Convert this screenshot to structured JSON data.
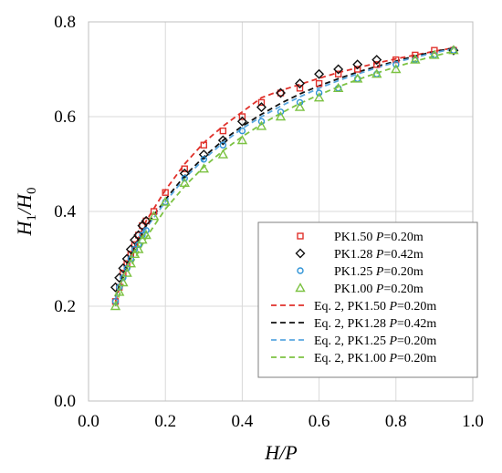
{
  "chart_data": {
    "type": "scatter",
    "xlabel": {
      "main": "H/P"
    },
    "ylabel": {
      "main": "H",
      "sub": "1",
      "slash": "/",
      "main2": "H",
      "sub2": "0"
    },
    "xlim": [
      0.0,
      1.0
    ],
    "ylim": [
      0.0,
      0.8
    ],
    "xticks": [
      "0.0",
      "0.2",
      "0.4",
      "0.6",
      "0.8",
      "1.0"
    ],
    "yticks": [
      "0.0",
      "0.2",
      "0.4",
      "0.6",
      "0.8"
    ],
    "grid": true,
    "legend_position": "bottom-right",
    "series": [
      {
        "name": "PK1.50 P=0.20m",
        "legend": {
          "pre": "PK1.50 ",
          "italic": "P",
          "post": "=0.20m"
        },
        "marker": "square",
        "color": "#e0312b",
        "points": [
          [
            0.07,
            0.21
          ],
          [
            0.08,
            0.24
          ],
          [
            0.09,
            0.27
          ],
          [
            0.1,
            0.29
          ],
          [
            0.11,
            0.31
          ],
          [
            0.12,
            0.33
          ],
          [
            0.13,
            0.35
          ],
          [
            0.14,
            0.37
          ],
          [
            0.15,
            0.38
          ],
          [
            0.17,
            0.4
          ],
          [
            0.2,
            0.44
          ],
          [
            0.25,
            0.49
          ],
          [
            0.3,
            0.54
          ],
          [
            0.35,
            0.57
          ],
          [
            0.4,
            0.6
          ],
          [
            0.45,
            0.63
          ],
          [
            0.5,
            0.65
          ],
          [
            0.55,
            0.66
          ],
          [
            0.6,
            0.67
          ],
          [
            0.65,
            0.69
          ],
          [
            0.7,
            0.7
          ],
          [
            0.75,
            0.71
          ],
          [
            0.8,
            0.72
          ],
          [
            0.85,
            0.73
          ],
          [
            0.9,
            0.74
          ],
          [
            0.95,
            0.74
          ]
        ]
      },
      {
        "name": "PK1.28 P=0.42m",
        "legend": {
          "pre": "PK1.28 ",
          "italic": "P",
          "post": "=0.42m"
        },
        "marker": "diamond",
        "color": "#111111",
        "points": [
          [
            0.07,
            0.24
          ],
          [
            0.08,
            0.26
          ],
          [
            0.09,
            0.28
          ],
          [
            0.1,
            0.3
          ],
          [
            0.11,
            0.32
          ],
          [
            0.12,
            0.34
          ],
          [
            0.13,
            0.35
          ],
          [
            0.14,
            0.37
          ],
          [
            0.15,
            0.38
          ],
          [
            0.25,
            0.48
          ],
          [
            0.3,
            0.52
          ],
          [
            0.35,
            0.55
          ],
          [
            0.4,
            0.59
          ],
          [
            0.45,
            0.62
          ],
          [
            0.5,
            0.65
          ],
          [
            0.55,
            0.67
          ],
          [
            0.6,
            0.69
          ],
          [
            0.65,
            0.7
          ],
          [
            0.7,
            0.71
          ],
          [
            0.75,
            0.72
          ],
          [
            0.95,
            0.74
          ]
        ]
      },
      {
        "name": "PK1.25 P=0.20m",
        "legend": {
          "pre": "PK1.25 ",
          "italic": "P",
          "post": "=0.20m"
        },
        "marker": "circle",
        "color": "#2f93d6",
        "points": [
          [
            0.07,
            0.21
          ],
          [
            0.08,
            0.24
          ],
          [
            0.09,
            0.26
          ],
          [
            0.1,
            0.28
          ],
          [
            0.11,
            0.3
          ],
          [
            0.12,
            0.32
          ],
          [
            0.13,
            0.33
          ],
          [
            0.14,
            0.35
          ],
          [
            0.15,
            0.36
          ],
          [
            0.2,
            0.42
          ],
          [
            0.25,
            0.47
          ],
          [
            0.3,
            0.51
          ],
          [
            0.35,
            0.54
          ],
          [
            0.4,
            0.57
          ],
          [
            0.45,
            0.59
          ],
          [
            0.5,
            0.61
          ],
          [
            0.55,
            0.63
          ],
          [
            0.6,
            0.65
          ],
          [
            0.65,
            0.66
          ],
          [
            0.7,
            0.68
          ],
          [
            0.75,
            0.69
          ],
          [
            0.8,
            0.71
          ],
          [
            0.85,
            0.72
          ],
          [
            0.9,
            0.73
          ],
          [
            0.95,
            0.74
          ]
        ]
      },
      {
        "name": "PK1.00 P=0.20m",
        "legend": {
          "pre": "PK1.00 ",
          "italic": "P",
          "post": "=0.20m"
        },
        "marker": "triangle",
        "color": "#7cc242",
        "points": [
          [
            0.07,
            0.2
          ],
          [
            0.08,
            0.23
          ],
          [
            0.09,
            0.25
          ],
          [
            0.1,
            0.27
          ],
          [
            0.11,
            0.29
          ],
          [
            0.12,
            0.31
          ],
          [
            0.13,
            0.32
          ],
          [
            0.14,
            0.34
          ],
          [
            0.15,
            0.35
          ],
          [
            0.17,
            0.39
          ],
          [
            0.2,
            0.42
          ],
          [
            0.25,
            0.46
          ],
          [
            0.3,
            0.49
          ],
          [
            0.35,
            0.52
          ],
          [
            0.4,
            0.55
          ],
          [
            0.45,
            0.58
          ],
          [
            0.5,
            0.6
          ],
          [
            0.55,
            0.62
          ],
          [
            0.6,
            0.64
          ],
          [
            0.65,
            0.66
          ],
          [
            0.7,
            0.68
          ],
          [
            0.75,
            0.69
          ],
          [
            0.8,
            0.7
          ],
          [
            0.85,
            0.72
          ],
          [
            0.9,
            0.73
          ],
          [
            0.95,
            0.74
          ]
        ]
      },
      {
        "name": "Eq. 2, PK1.50 P=0.20m",
        "legend": {
          "pre": "Eq. 2, PK1.50 ",
          "italic": "P",
          "post": "=0.20m"
        },
        "line": "dashed",
        "color": "#e0312b",
        "x": [
          0.07,
          0.1,
          0.15,
          0.2,
          0.25,
          0.3,
          0.35,
          0.4,
          0.45,
          0.5,
          0.55,
          0.6,
          0.65,
          0.7,
          0.75,
          0.8,
          0.85,
          0.9,
          0.95
        ],
        "y": [
          0.21,
          0.29,
          0.38,
          0.445,
          0.5,
          0.545,
          0.58,
          0.61,
          0.64,
          0.655,
          0.668,
          0.681,
          0.693,
          0.703,
          0.713,
          0.722,
          0.73,
          0.738,
          0.745
        ]
      },
      {
        "name": "Eq. 2, PK1.28 P=0.42m",
        "legend": {
          "pre": "Eq. 2, PK1.28 ",
          "italic": "P",
          "post": "=0.42m"
        },
        "line": "dashed",
        "color": "#111111",
        "x": [
          0.07,
          0.1,
          0.15,
          0.2,
          0.25,
          0.3,
          0.35,
          0.4,
          0.45,
          0.5,
          0.55,
          0.6,
          0.65,
          0.7,
          0.75,
          0.8,
          0.85,
          0.9,
          0.95
        ],
        "y": [
          0.22,
          0.29,
          0.37,
          0.425,
          0.475,
          0.515,
          0.55,
          0.58,
          0.605,
          0.628,
          0.648,
          0.665,
          0.68,
          0.694,
          0.706,
          0.717,
          0.728,
          0.737,
          0.745
        ]
      },
      {
        "name": "Eq. 2, PK1.25 P=0.20m",
        "legend": {
          "pre": "Eq. 2, PK1.25 ",
          "italic": "P",
          "post": "=0.20m"
        },
        "line": "dashed",
        "color": "#5aa8e0",
        "x": [
          0.07,
          0.1,
          0.15,
          0.2,
          0.25,
          0.3,
          0.35,
          0.4,
          0.45,
          0.5,
          0.55,
          0.6,
          0.65,
          0.7,
          0.75,
          0.8,
          0.85,
          0.9,
          0.95
        ],
        "y": [
          0.215,
          0.285,
          0.365,
          0.42,
          0.47,
          0.51,
          0.545,
          0.575,
          0.6,
          0.622,
          0.642,
          0.66,
          0.676,
          0.69,
          0.703,
          0.715,
          0.725,
          0.735,
          0.743
        ]
      },
      {
        "name": "Eq. 2, PK1.00 P=0.20m",
        "legend": {
          "pre": "Eq. 2, PK1.00 ",
          "italic": "P",
          "post": "=0.20m"
        },
        "line": "dashed",
        "color": "#7cc242",
        "x": [
          0.07,
          0.1,
          0.15,
          0.2,
          0.25,
          0.3,
          0.35,
          0.4,
          0.45,
          0.5,
          0.55,
          0.6,
          0.65,
          0.7,
          0.75,
          0.8,
          0.85,
          0.9,
          0.95
        ],
        "y": [
          0.2,
          0.27,
          0.345,
          0.405,
          0.453,
          0.494,
          0.528,
          0.558,
          0.584,
          0.607,
          0.628,
          0.646,
          0.663,
          0.678,
          0.692,
          0.705,
          0.717,
          0.728,
          0.738
        ]
      }
    ]
  }
}
